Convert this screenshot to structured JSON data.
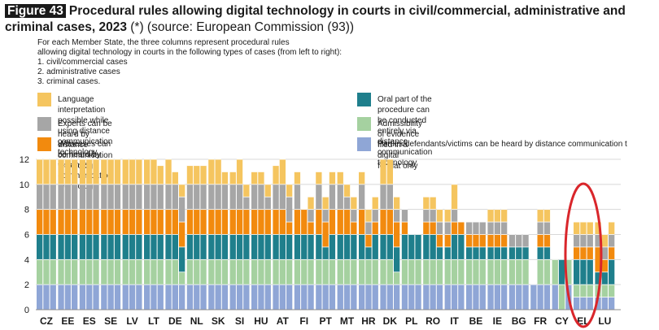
{
  "title": {
    "figure_label": "Figure 43",
    "text": "Procedural rules allowing digital technology in courts in civil/commercial, administrative and criminal cases, 2023",
    "suffix": "(*) (source: European Commission (93))"
  },
  "notes": [
    "For each Member State, the three columns represent procedural rules",
    "allowing digital technology in courts in the following types of cases (from left to right):",
    "1. civil/commercial cases",
    "2. administrative cases",
    "3. criminal cases."
  ],
  "chart_data": {
    "type": "bar",
    "stacked": true,
    "grouping": "3 columns per country: civil/commercial, administrative, criminal",
    "ylim": [
      0,
      12
    ],
    "yticks": [
      0,
      2,
      4,
      6,
      8,
      10,
      12
    ],
    "grid": true,
    "legend_position": "top",
    "series": [
      {
        "name": "Parties/defendants/victims can be heard by distance communication t",
        "color": "#8fa6d6",
        "unit": 2
      },
      {
        "name": "Admissibility of evidence filed in a digital format only",
        "color": "#a5d1a0",
        "unit": 2
      },
      {
        "name": "Oral part of the procedure can be conducted entirely via distance communication technology",
        "color": "#1f7f8c",
        "unit": 2
      },
      {
        "name": "Witnesses can be heard by distance communication technology",
        "color": "#f28a0e",
        "unit": 2
      },
      {
        "name": "Experts can be heard by distance communication technology",
        "color": "#a6a6a6",
        "unit": 2
      },
      {
        "name": "Language interpretation possible while using distance communication technology",
        "color": "#f5c55f",
        "unit": 2
      }
    ],
    "legend_order": [
      5,
      2,
      4,
      1,
      3,
      0
    ],
    "countries": [
      {
        "code": "CZ",
        "bars": [
          [
            1,
            1,
            1,
            1,
            1,
            1
          ],
          [
            1,
            1,
            1,
            1,
            1,
            1
          ],
          [
            1,
            1,
            1,
            1,
            1,
            1
          ]
        ]
      },
      {
        "code": "EE",
        "bars": [
          [
            1,
            1,
            1,
            1,
            1,
            1
          ],
          [
            1,
            1,
            1,
            1,
            1,
            1
          ],
          [
            1,
            1,
            1,
            1,
            1,
            1
          ]
        ]
      },
      {
        "code": "ES",
        "bars": [
          [
            1,
            1,
            1,
            1,
            1,
            1
          ],
          [
            1,
            1,
            1,
            1,
            1,
            1
          ],
          [
            1,
            1,
            1,
            1,
            1,
            1
          ]
        ]
      },
      {
        "code": "SE",
        "bars": [
          [
            1,
            1,
            1,
            1,
            1,
            1
          ],
          [
            1,
            1,
            1,
            1,
            1,
            1
          ],
          [
            1,
            1,
            1,
            1,
            1,
            1
          ]
        ]
      },
      {
        "code": "LV",
        "bars": [
          [
            1,
            1,
            1,
            1,
            1,
            1
          ],
          [
            1,
            1,
            1,
            1,
            1,
            1
          ],
          [
            1,
            1,
            1,
            1,
            1,
            1
          ]
        ]
      },
      {
        "code": "LT",
        "bars": [
          [
            1,
            1,
            1,
            1,
            1,
            1
          ],
          [
            1,
            1,
            1,
            1,
            1,
            1
          ],
          [
            1,
            1,
            1,
            1,
            1,
            0.75
          ]
        ]
      },
      {
        "code": "DE",
        "bars": [
          [
            1,
            1,
            1,
            1,
            1,
            1
          ],
          [
            1,
            1,
            1,
            1,
            1,
            0.5
          ],
          [
            1,
            0.5,
            1,
            1,
            1,
            0.5
          ]
        ]
      },
      {
        "code": "NL",
        "bars": [
          [
            1,
            1,
            1,
            1,
            1,
            0.75
          ],
          [
            1,
            1,
            1,
            1,
            1,
            0.75
          ],
          [
            1,
            1,
            1,
            1,
            1,
            0.75
          ]
        ]
      },
      {
        "code": "SK",
        "bars": [
          [
            1,
            1,
            1,
            1,
            1,
            1
          ],
          [
            1,
            1,
            1,
            1,
            1,
            1
          ],
          [
            1,
            1,
            1,
            1,
            1,
            0.5
          ]
        ]
      },
      {
        "code": "SI",
        "bars": [
          [
            1,
            1,
            1,
            1,
            1,
            0.5
          ],
          [
            1,
            1,
            1,
            1,
            1,
            1
          ],
          [
            1,
            1,
            1,
            1,
            0.5,
            0.5
          ]
        ]
      },
      {
        "code": "HU",
        "bars": [
          [
            1,
            1,
            1,
            1,
            1,
            0.5
          ],
          [
            1,
            1,
            1,
            1,
            1,
            0.5
          ],
          [
            1,
            1,
            1,
            1,
            0.5,
            0.5
          ]
        ]
      },
      {
        "code": "AT",
        "bars": [
          [
            1,
            1,
            1,
            1,
            1,
            0.75
          ],
          [
            1,
            1,
            1,
            1,
            1,
            1
          ],
          [
            1,
            1,
            1,
            0.5,
            1,
            0.5
          ]
        ]
      },
      {
        "code": "FI",
        "bars": [
          [
            1,
            1,
            1,
            1,
            1,
            0.5
          ],
          [
            1,
            1,
            1,
            1,
            0,
            0
          ],
          [
            1,
            1,
            1,
            0.5,
            0.5,
            0.5
          ]
        ]
      },
      {
        "code": "PT",
        "bars": [
          [
            1,
            1,
            1,
            1,
            1,
            0.5
          ],
          [
            1,
            1,
            0.5,
            1,
            0.5,
            0.5
          ],
          [
            1,
            1,
            1,
            1,
            1,
            0.5
          ]
        ]
      },
      {
        "code": "MT",
        "bars": [
          [
            1,
            1,
            1,
            1,
            1,
            0.5
          ],
          [
            1,
            1,
            1,
            1,
            0.5,
            0.5
          ],
          [
            1,
            1,
            1,
            0.5,
            0.5,
            0.5
          ]
        ]
      },
      {
        "code": "HR",
        "bars": [
          [
            1,
            1,
            1,
            1,
            1,
            0.5
          ],
          [
            1,
            1,
            0.5,
            0.5,
            0.5,
            0.5
          ],
          [
            1,
            1,
            1,
            0.5,
            0.5,
            0.5
          ]
        ]
      },
      {
        "code": "DK",
        "bars": [
          [
            1,
            1,
            1,
            1,
            1,
            1
          ],
          [
            1,
            1,
            1,
            1,
            1,
            1
          ],
          [
            1,
            0.5,
            1,
            1,
            0.5,
            0.5
          ]
        ]
      },
      {
        "code": "PL",
        "bars": [
          [
            1,
            1,
            1,
            0.5,
            0.5,
            0
          ],
          [
            1,
            1,
            1,
            0,
            0,
            0
          ],
          [
            1,
            1,
            1,
            0,
            0,
            0
          ]
        ]
      },
      {
        "code": "RO",
        "bars": [
          [
            1,
            1,
            1,
            0.5,
            0.5,
            0.5
          ],
          [
            1,
            1,
            1,
            0.5,
            0.5,
            0.5
          ],
          [
            1,
            1,
            0.5,
            0.5,
            0.5,
            0.5
          ]
        ]
      },
      {
        "code": "IT",
        "bars": [
          [
            1,
            1,
            0.5,
            0.5,
            0.5,
            0.5
          ],
          [
            1,
            1,
            1,
            0.5,
            0.5,
            1
          ],
          [
            1,
            1,
            1,
            0.5,
            0,
            0
          ]
        ]
      },
      {
        "code": "BE",
        "bars": [
          [
            1,
            1,
            0.5,
            0.5,
            0.5,
            0
          ],
          [
            1,
            1,
            0.5,
            0.5,
            0.5,
            0
          ],
          [
            1,
            1,
            0.5,
            0.5,
            0.5,
            0
          ]
        ]
      },
      {
        "code": "IE",
        "bars": [
          [
            1,
            1,
            0.5,
            0.5,
            0.5,
            0.5
          ],
          [
            1,
            1,
            0.5,
            0.5,
            0.5,
            0.5
          ],
          [
            1,
            1,
            0.5,
            0.5,
            0.5,
            0.5
          ]
        ]
      },
      {
        "code": "BG",
        "bars": [
          [
            1,
            1,
            0.5,
            0,
            0.5,
            0
          ],
          [
            1,
            1,
            0.5,
            0,
            0.5,
            0
          ],
          [
            1,
            1,
            0.5,
            0,
            0.5,
            0
          ]
        ]
      },
      {
        "code": "FR",
        "bars": [
          [
            1,
            0,
            0,
            0,
            0,
            0
          ],
          [
            1,
            1,
            0.5,
            0.5,
            0.5,
            0.5
          ],
          [
            1,
            1,
            0.5,
            0.5,
            0.5,
            0.5
          ]
        ]
      },
      {
        "code": "CY",
        "bars": [
          [
            1,
            1,
            0,
            0,
            0,
            0
          ],
          [
            0,
            1,
            1,
            0,
            0,
            0
          ],
          [
            1,
            1,
            0,
            0,
            0,
            0
          ]
        ]
      },
      {
        "code": "EL",
        "bars": [
          [
            0.5,
            0.5,
            1,
            0.5,
            0.5,
            0.5
          ],
          [
            0.5,
            0.5,
            1,
            0.5,
            0.5,
            0.5
          ],
          [
            0.5,
            0.5,
            1,
            0.5,
            0.5,
            0.5
          ]
        ]
      },
      {
        "code": "LU",
        "bars": [
          [
            0.5,
            0.5,
            0.5,
            1,
            0.5,
            0.5
          ],
          [
            0.5,
            0.5,
            0.5,
            0.5,
            0.5,
            0.5
          ],
          [
            0.5,
            0.5,
            1,
            0.5,
            0.5,
            0.5
          ]
        ]
      }
    ],
    "highlight": {
      "countries": [
        "CY",
        "EL",
        "LU"
      ],
      "shape": "ellipse",
      "color": "#d9262b"
    }
  }
}
